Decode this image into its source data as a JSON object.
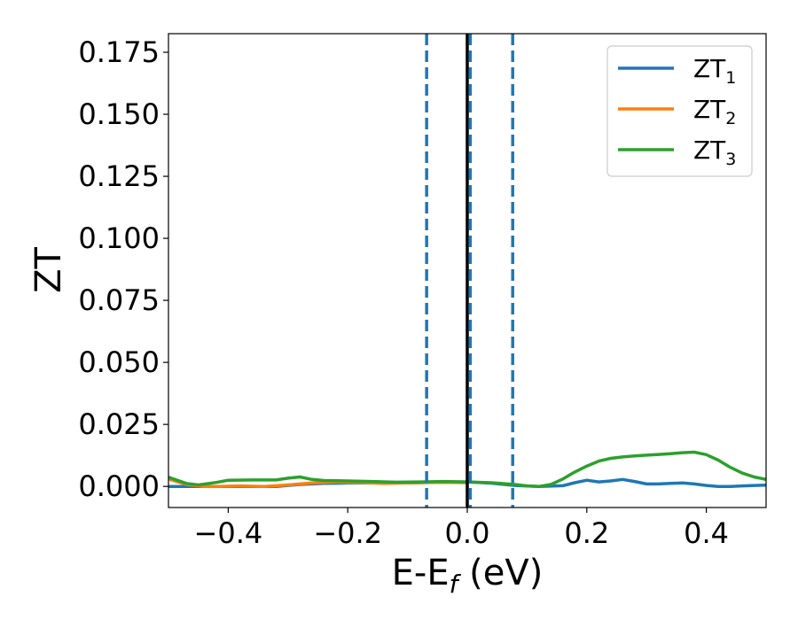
{
  "chart_data": {
    "type": "line",
    "xlabel": {
      "main": "E-E",
      "sub": "f",
      "unit": " (eV)"
    },
    "ylabel": "ZT",
    "xlim": [
      -0.5,
      0.5
    ],
    "ylim": [
      -0.0085,
      0.1825
    ],
    "grid": false,
    "legend_position": "top-right",
    "x_ticks": [
      {
        "value": -0.4,
        "label": "−0.4"
      },
      {
        "value": -0.2,
        "label": "−0.2"
      },
      {
        "value": 0.0,
        "label": "0.0"
      },
      {
        "value": 0.2,
        "label": "0.2"
      },
      {
        "value": 0.4,
        "label": "0.4"
      }
    ],
    "y_ticks": [
      {
        "value": 0.0,
        "label": "0.000"
      },
      {
        "value": 0.025,
        "label": "0.025"
      },
      {
        "value": 0.05,
        "label": "0.050"
      },
      {
        "value": 0.075,
        "label": "0.075"
      },
      {
        "value": 0.1,
        "label": "0.100"
      },
      {
        "value": 0.125,
        "label": "0.125"
      },
      {
        "value": 0.15,
        "label": "0.150"
      },
      {
        "value": 0.175,
        "label": "0.175"
      }
    ],
    "vertical_lines": [
      {
        "x": -0.068,
        "style": "dashed",
        "color": "#1f77b4"
      },
      {
        "x": 0.0,
        "style": "solid",
        "color": "#000000"
      },
      {
        "x": 0.005,
        "style": "dashed",
        "color": "#1f77b4"
      },
      {
        "x": 0.076,
        "style": "dashed",
        "color": "#1f77b4"
      }
    ],
    "series": [
      {
        "name": "ZT",
        "sub": "1",
        "color": "#1f77b4",
        "x": [
          -0.5,
          -0.46,
          -0.44,
          -0.4,
          -0.36,
          -0.32,
          -0.28,
          -0.24,
          -0.2,
          -0.16,
          -0.12,
          -0.08,
          -0.04,
          0.0,
          0.04,
          0.08,
          0.12,
          0.16,
          0.18,
          0.2,
          0.22,
          0.24,
          0.26,
          0.28,
          0.3,
          0.32,
          0.34,
          0.36,
          0.38,
          0.4,
          0.42,
          0.44,
          0.46,
          0.48,
          0.5
        ],
        "y": [
          0.0,
          0.0,
          0.0,
          0.0,
          0.0,
          0.0,
          0.0008,
          0.0012,
          0.0014,
          0.0014,
          0.0014,
          0.0015,
          0.0017,
          0.0018,
          0.0013,
          0.0004,
          0.0,
          0.0003,
          0.0015,
          0.0025,
          0.0018,
          0.0022,
          0.0028,
          0.002,
          0.001,
          0.001,
          0.0012,
          0.0014,
          0.001,
          0.0004,
          0.0,
          0.0,
          0.0002,
          0.0004,
          0.0005
        ]
      },
      {
        "name": "ZT",
        "sub": "2",
        "color": "#ff7f0e",
        "x": [
          -0.5,
          -0.47,
          -0.44,
          -0.42,
          -0.38,
          -0.34,
          -0.3,
          -0.26,
          -0.22,
          -0.18,
          -0.14,
          -0.1,
          -0.06,
          -0.02,
          0.0
        ],
        "y": [
          0.003,
          0.0008,
          0.0,
          0.0,
          0.0002,
          0.0,
          0.0006,
          0.0014,
          0.0018,
          0.0016,
          0.0012,
          0.0014,
          0.0016,
          0.0016,
          0.0015
        ]
      },
      {
        "name": "ZT",
        "sub": "3",
        "color": "#2ca02c",
        "x": [
          -0.5,
          -0.47,
          -0.45,
          -0.42,
          -0.4,
          -0.36,
          -0.32,
          -0.3,
          -0.28,
          -0.26,
          -0.24,
          -0.2,
          -0.16,
          -0.12,
          -0.08,
          -0.04,
          0.0,
          0.04,
          0.08,
          0.1,
          0.12,
          0.14,
          0.16,
          0.18,
          0.2,
          0.22,
          0.24,
          0.26,
          0.28,
          0.3,
          0.32,
          0.34,
          0.36,
          0.38,
          0.4,
          0.42,
          0.44,
          0.46,
          0.48,
          0.5
        ],
        "y": [
          0.0037,
          0.0012,
          0.0006,
          0.0016,
          0.0025,
          0.0026,
          0.0026,
          0.0033,
          0.0038,
          0.0028,
          0.0024,
          0.0022,
          0.002,
          0.0017,
          0.0018,
          0.002,
          0.0018,
          0.0015,
          0.0008,
          0.0002,
          0.0,
          0.0008,
          0.003,
          0.0058,
          0.0082,
          0.0102,
          0.0113,
          0.0119,
          0.0123,
          0.0126,
          0.0129,
          0.0132,
          0.0136,
          0.0138,
          0.0128,
          0.0106,
          0.0077,
          0.0054,
          0.0038,
          0.0028
        ]
      }
    ]
  }
}
